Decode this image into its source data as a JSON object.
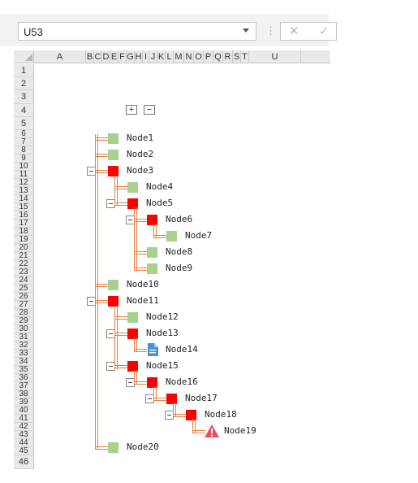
{
  "namebox": {
    "value": "U53"
  },
  "formula_bar": {
    "cancel_glyph": "✕",
    "enter_glyph": "✓",
    "more_glyph": "⋮"
  },
  "columns": [
    "A",
    "B",
    "C",
    "D",
    "E",
    "F",
    "G",
    "H",
    "I",
    "J",
    "K",
    "L",
    "M",
    "N",
    "O",
    "P",
    "Q",
    "R",
    "S",
    "T",
    "U"
  ],
  "rows": [
    "1",
    "2",
    "3",
    "4",
    "5",
    "6",
    "7",
    "8",
    "9",
    "10",
    "11",
    "12",
    "13",
    "14",
    "15",
    "16",
    "17",
    "18",
    "19",
    "20",
    "21",
    "22",
    "23",
    "24",
    "25",
    "26",
    "27",
    "28",
    "29",
    "30",
    "31",
    "32",
    "33",
    "34",
    "35",
    "36",
    "37",
    "38",
    "39",
    "40",
    "41",
    "42",
    "43",
    "44",
    "45",
    "46"
  ],
  "group_buttons": {
    "expand": "+",
    "collapse": "−"
  },
  "colors": {
    "leaf": "#a9d08e",
    "branch": "#ff0000",
    "connector": "#e3803d",
    "document": "#4a90d9",
    "warning": "#e8505b"
  },
  "tree": [
    {
      "label": "Node1",
      "kind": "leaf"
    },
    {
      "label": "Node2",
      "kind": "leaf"
    },
    {
      "label": "Node3",
      "kind": "branch"
    },
    {
      "label": "Node4",
      "kind": "leaf"
    },
    {
      "label": "Node5",
      "kind": "branch"
    },
    {
      "label": "Node6",
      "kind": "branch"
    },
    {
      "label": "Node7",
      "kind": "leaf"
    },
    {
      "label": "Node8",
      "kind": "leaf"
    },
    {
      "label": "Node9",
      "kind": "leaf"
    },
    {
      "label": "Node10",
      "kind": "leaf"
    },
    {
      "label": "Node11",
      "kind": "branch"
    },
    {
      "label": "Node12",
      "kind": "leaf"
    },
    {
      "label": "Node13",
      "kind": "branch"
    },
    {
      "label": "Node14",
      "kind": "document-icon"
    },
    {
      "label": "Node15",
      "kind": "branch"
    },
    {
      "label": "Node16",
      "kind": "branch"
    },
    {
      "label": "Node17",
      "kind": "branch"
    },
    {
      "label": "Node18",
      "kind": "branch"
    },
    {
      "label": "Node19",
      "kind": "warning-icon"
    },
    {
      "label": "Node20",
      "kind": "leaf"
    }
  ]
}
